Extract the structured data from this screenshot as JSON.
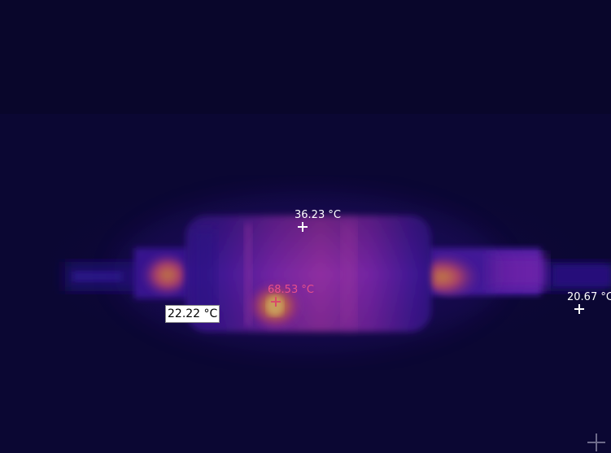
{
  "image": {
    "type": "thermal-camera-view",
    "palette": [
      "#0b0733",
      "#2a0f7a",
      "#6a1fb0",
      "#b03ab0",
      "#e0508a",
      "#f08030",
      "#ffc040"
    ]
  },
  "measurements": [
    {
      "id": "spot-top",
      "label": "36.23 °C",
      "color": "#ffffff",
      "boxed": false
    },
    {
      "id": "spot-hot",
      "label": "68.53 °C",
      "color": "#e8508a",
      "boxed": false
    },
    {
      "id": "spot-left",
      "label": "22.22 °C",
      "color": "#000000",
      "boxed": true
    },
    {
      "id": "spot-right",
      "label": "20.67 °C",
      "color": "#ffffff",
      "boxed": false
    }
  ],
  "icons": {
    "corner": "crosshair-icon"
  }
}
